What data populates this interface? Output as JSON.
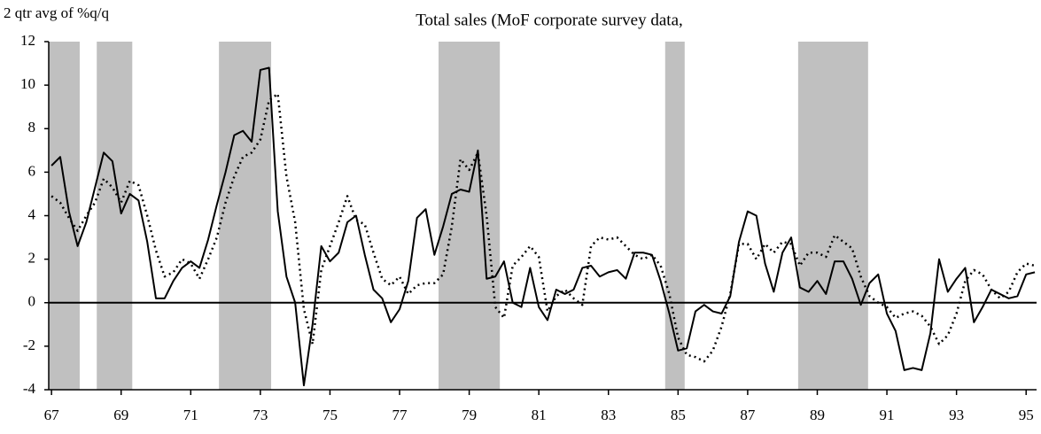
{
  "chart_data": {
    "type": "line",
    "title": "Total sales (MoF corporate survey data,",
    "y_label": "2 qtr avg of %q/q",
    "x": [
      67,
      67.25,
      67.5,
      67.75,
      68,
      68.25,
      68.5,
      68.75,
      69,
      69.25,
      69.5,
      69.75,
      70,
      70.25,
      70.5,
      70.75,
      71,
      71.25,
      71.5,
      71.75,
      72,
      72.25,
      72.5,
      72.75,
      73,
      73.25,
      73.5,
      73.75,
      74,
      74.25,
      74.5,
      74.75,
      75,
      75.25,
      75.5,
      75.75,
      76,
      76.25,
      76.5,
      76.75,
      77,
      77.25,
      77.5,
      77.75,
      78,
      78.25,
      78.5,
      78.75,
      79,
      79.25,
      79.5,
      79.75,
      80,
      80.25,
      80.5,
      80.75,
      81,
      81.25,
      81.5,
      81.75,
      82,
      82.25,
      82.5,
      82.75,
      83,
      83.25,
      83.5,
      83.75,
      84,
      84.25,
      84.5,
      84.75,
      85,
      85.25,
      85.5,
      85.75,
      86,
      86.25,
      86.5,
      86.75,
      87,
      87.25,
      87.5,
      87.75,
      88,
      88.25,
      88.5,
      88.75,
      89,
      89.25,
      89.5,
      89.75,
      90,
      90.25,
      90.5,
      90.75,
      91,
      91.25,
      91.5,
      91.75,
      92,
      92.25,
      92.5,
      92.75,
      93,
      93.25,
      93.5,
      93.75,
      94,
      94.25,
      94.5,
      94.75,
      95,
      95.25
    ],
    "series": [
      {
        "color": "#000000",
        "style": "solid",
        "values": [
          6.3,
          6.7,
          4.2,
          2.6,
          3.7,
          5.3,
          6.9,
          6.5,
          4.1,
          5.0,
          4.7,
          2.8,
          0.2,
          0.2,
          1.0,
          1.6,
          1.9,
          1.6,
          2.9,
          4.5,
          6.0,
          7.7,
          7.9,
          7.4,
          10.7,
          10.8,
          4.2,
          1.2,
          0.0,
          -3.8,
          -1.0,
          2.6,
          1.9,
          2.3,
          3.7,
          4.0,
          2.2,
          0.6,
          0.2,
          -0.9,
          -0.3,
          1.0,
          3.9,
          4.3,
          2.2,
          3.5,
          5.0,
          5.2,
          5.1,
          7.0,
          1.1,
          1.2,
          1.9,
          0.0,
          -0.2,
          1.6,
          -0.2,
          -0.8,
          0.6,
          0.4,
          0.6,
          1.6,
          1.7,
          1.2,
          1.4,
          1.5,
          1.1,
          2.3,
          2.3,
          2.2,
          1.0,
          -0.5,
          -2.2,
          -2.1,
          -0.4,
          -0.1,
          -0.4,
          -0.5,
          0.3,
          2.8,
          4.2,
          4.0,
          1.8,
          0.5,
          2.3,
          3.0,
          0.7,
          0.5,
          1.0,
          0.4,
          1.9,
          1.9,
          1.1,
          -0.1,
          0.9,
          1.3,
          -0.5,
          -1.3,
          -3.1,
          -3.0,
          -3.1,
          -1.4,
          2.0,
          0.5,
          1.1,
          1.6,
          -0.9,
          -0.2,
          0.6,
          0.4,
          0.2,
          0.3,
          1.3,
          1.4
        ]
      },
      {
        "color": "#000000",
        "style": "dotted",
        "values": [
          4.9,
          4.6,
          3.9,
          3.3,
          4.0,
          4.6,
          5.7,
          5.3,
          4.6,
          5.6,
          5.4,
          4.0,
          2.4,
          1.2,
          1.4,
          2.0,
          1.8,
          1.1,
          2.0,
          3.0,
          4.6,
          5.8,
          6.7,
          6.9,
          7.5,
          9.3,
          9.6,
          5.8,
          3.7,
          -0.3,
          -1.9,
          1.5,
          2.6,
          3.7,
          4.9,
          3.8,
          3.6,
          2.3,
          1.1,
          0.8,
          1.2,
          0.4,
          0.8,
          0.9,
          0.9,
          1.3,
          3.5,
          6.6,
          6.1,
          6.9,
          4.0,
          -0.2,
          -0.7,
          1.7,
          2.1,
          2.6,
          2.1,
          -0.4,
          0.3,
          0.6,
          0.2,
          -0.1,
          2.6,
          3.0,
          2.9,
          3.0,
          2.6,
          2.2,
          2.0,
          2.2,
          1.7,
          0.4,
          -1.6,
          -2.4,
          -2.5,
          -2.7,
          -2.2,
          -1.1,
          0.4,
          2.7,
          2.7,
          2.0,
          2.7,
          2.3,
          2.8,
          2.7,
          1.7,
          2.3,
          2.3,
          2.1,
          3.1,
          2.8,
          2.5,
          1.2,
          0.3,
          0.0,
          -0.2,
          -0.7,
          -0.5,
          -0.4,
          -0.6,
          -1.1,
          -1.9,
          -1.5,
          -0.5,
          1.0,
          1.5,
          1.3,
          0.6,
          0.2,
          0.5,
          1.4,
          1.8,
          1.7
        ]
      }
    ],
    "shaded_periods": [
      [
        66.92,
        67.81
      ],
      [
        68.3,
        69.32
      ],
      [
        71.81,
        73.31
      ],
      [
        78.12,
        79.88
      ],
      [
        84.63,
        85.19
      ],
      [
        88.45,
        90.46
      ]
    ],
    "shade_color": "#c0c0c0",
    "zero_line": true,
    "xlim": [
      66.92,
      95.3
    ],
    "xticks": [
      67,
      69,
      71,
      73,
      75,
      77,
      79,
      81,
      83,
      85,
      87,
      89,
      91,
      93,
      95
    ],
    "ylim": [
      -4,
      12
    ],
    "yticks": [
      -4,
      -2,
      0,
      2,
      4,
      6,
      8,
      10,
      12
    ]
  }
}
